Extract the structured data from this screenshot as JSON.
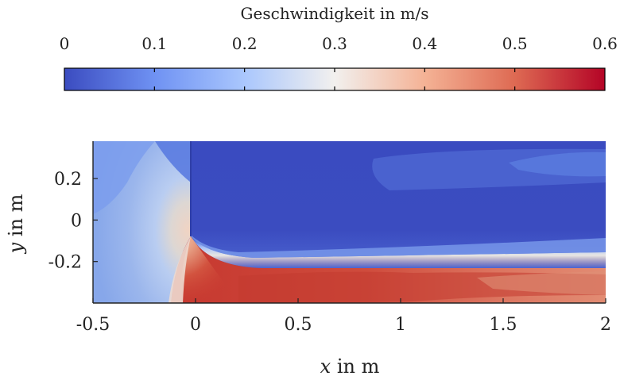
{
  "chart_data": {
    "type": "heatmap",
    "title": "",
    "colorbar": {
      "label": "Geschwindigkeit in m/s",
      "ticks": [
        "0",
        "0.1",
        "0.2",
        "0.3",
        "0.4",
        "0.5",
        "0.6"
      ],
      "range": [
        0,
        0.6
      ],
      "colors": [
        "#3b4cc0",
        "#6f92f3",
        "#aac7fd",
        "#dddcdc",
        "#f7b89c",
        "#e7745b",
        "#b40426"
      ],
      "placement": "top"
    },
    "xlabel_var": "x",
    "xlabel_unit": " in m",
    "ylabel_var": "y",
    "ylabel_unit": " in m",
    "xlim": [
      -0.5,
      2
    ],
    "ylim": [
      -0.4,
      0.38
    ],
    "xticks": [
      "-0.5",
      "0",
      "0.5",
      "1",
      "1.5",
      "2"
    ],
    "yticks": [
      "0.2",
      "0",
      "-0.2"
    ],
    "ytick_values": [
      0.2,
      0,
      -0.2
    ],
    "xtick_values": [
      -0.5,
      0,
      0.5,
      1,
      1.5,
      2
    ],
    "grid": false,
    "plate_edge": {
      "x": 0,
      "y": -0.08
    },
    "field_samples": [
      {
        "x": -0.45,
        "y": 0.3,
        "v": 0.14
      },
      {
        "x": -0.3,
        "y": 0.0,
        "v": 0.17
      },
      {
        "x": -0.1,
        "y": -0.3,
        "v": 0.24
      },
      {
        "x": 0.5,
        "y": 0.2,
        "v": 0.0
      },
      {
        "x": 1.5,
        "y": 0.3,
        "v": 0.07
      },
      {
        "x": 0.6,
        "y": -0.3,
        "v": 0.55
      },
      {
        "x": 1.5,
        "y": -0.3,
        "v": 0.47
      },
      {
        "x": 1.8,
        "y": -0.25,
        "v": 0.45
      }
    ]
  }
}
